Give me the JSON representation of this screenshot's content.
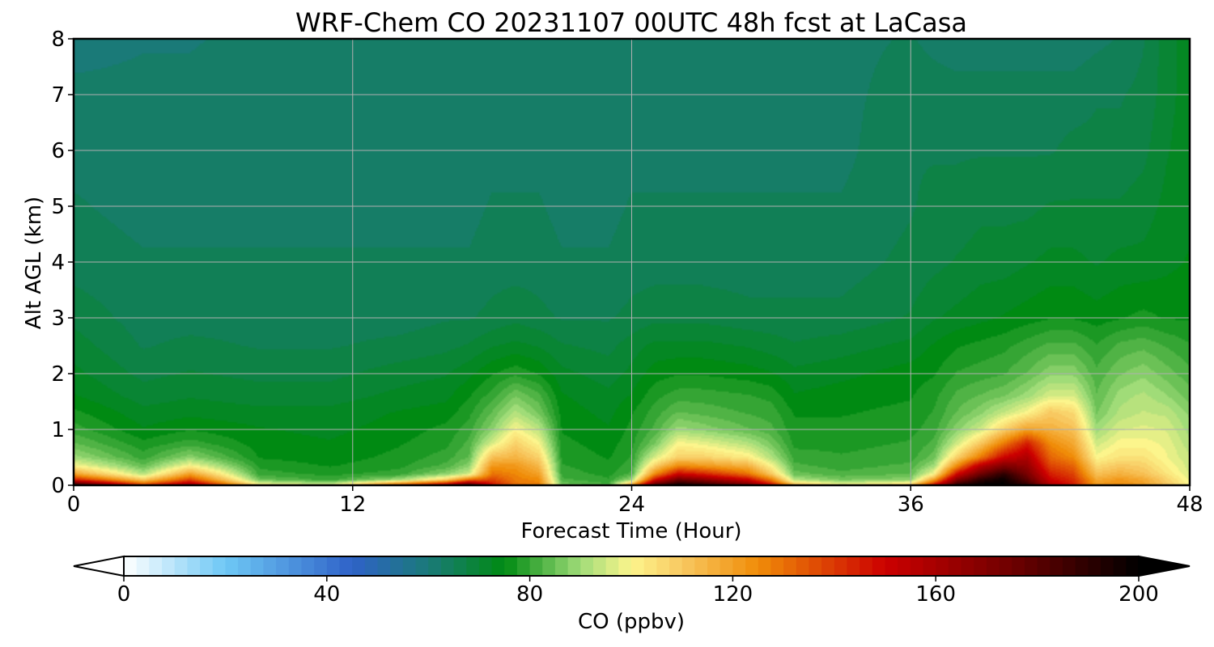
{
  "chart_data": {
    "type": "heatmap",
    "title": "WRF-Chem CO  20231107 00UTC 48h fcst at LaCasa",
    "xlabel": "Forecast Time (Hour)",
    "ylabel": "Alt AGL (km)",
    "xlim": [
      0,
      48
    ],
    "ylim": [
      0,
      8
    ],
    "x_ticks": [
      "0",
      "12",
      "24",
      "36",
      "48"
    ],
    "y_ticks": [
      "0",
      "1",
      "2",
      "3",
      "4",
      "5",
      "6",
      "7",
      "8"
    ],
    "grid": true,
    "colorbar": {
      "label": "CO  (ppbv)",
      "min": 0,
      "max": 200,
      "ticks": [
        "0",
        "40",
        "80",
        "120",
        "160",
        "200"
      ],
      "extend": "both",
      "stops": [
        {
          "value": 0,
          "color": "#ffffff"
        },
        {
          "value": 20,
          "color": "#6ec8f5"
        },
        {
          "value": 45,
          "color": "#2f62c8"
        },
        {
          "value": 60,
          "color": "#1a7a78"
        },
        {
          "value": 75,
          "color": "#008a12"
        },
        {
          "value": 90,
          "color": "#a0dc78"
        },
        {
          "value": 100,
          "color": "#fcf58c"
        },
        {
          "value": 110,
          "color": "#f8c860"
        },
        {
          "value": 125,
          "color": "#f08c08"
        },
        {
          "value": 150,
          "color": "#cc0000"
        },
        {
          "value": 175,
          "color": "#6e0000"
        },
        {
          "value": 200,
          "color": "#000000"
        }
      ]
    },
    "heights_km": [
      0,
      0.1,
      0.2,
      0.35,
      0.5,
      0.75,
      1.0,
      1.3,
      1.6,
      2.0,
      2.5,
      3.0,
      4.0,
      5.0,
      6.0,
      7.0,
      8.0
    ],
    "times_h": [
      0,
      3,
      5,
      8,
      11,
      14,
      16,
      17,
      18,
      19,
      20,
      21,
      23,
      24,
      25,
      26,
      27,
      29,
      30,
      31,
      33,
      36,
      37,
      38,
      39,
      40,
      41,
      42,
      43,
      44,
      45,
      46,
      47,
      48
    ],
    "co_ppbv": [
      [
        195,
        145,
        120,
        100,
        90,
        84,
        80,
        77,
        74,
        72,
        70,
        68,
        65,
        64,
        63,
        62,
        60
      ],
      [
        140,
        110,
        92,
        84,
        80,
        77,
        74,
        72,
        70,
        68,
        66,
        65,
        64,
        63,
        63,
        62,
        61
      ],
      [
        165,
        138,
        120,
        100,
        88,
        80,
        76,
        73,
        71,
        69,
        67,
        65,
        64,
        63,
        63,
        62,
        61
      ],
      [
        102,
        85,
        80,
        78,
        76,
        75,
        74,
        72,
        70,
        68,
        66,
        65,
        64,
        63,
        63,
        63,
        62
      ],
      [
        96,
        80,
        78,
        76,
        75,
        74,
        73,
        72,
        70,
        68,
        66,
        65,
        64,
        63,
        63,
        63,
        63
      ],
      [
        135,
        90,
        80,
        78,
        77,
        76,
        75,
        74,
        72,
        70,
        67,
        65,
        64,
        63,
        63,
        63,
        63
      ],
      [
        160,
        108,
        88,
        82,
        80,
        78,
        77,
        75,
        73,
        71,
        68,
        66,
        64,
        63,
        63,
        63,
        63
      ],
      [
        185,
        130,
        95,
        88,
        84,
        82,
        80,
        78,
        76,
        73,
        69,
        66,
        64,
        63,
        63,
        63,
        63
      ],
      [
        148,
        138,
        130,
        122,
        112,
        96,
        88,
        84,
        80,
        76,
        71,
        67,
        65,
        64,
        63,
        63,
        63
      ],
      [
        130,
        128,
        126,
        122,
        115,
        108,
        100,
        92,
        86,
        78,
        72,
        68,
        65,
        64,
        63,
        63,
        63
      ],
      [
        128,
        125,
        120,
        114,
        108,
        100,
        93,
        86,
        82,
        76,
        71,
        67,
        65,
        64,
        63,
        63,
        63
      ],
      [
        86,
        82,
        80,
        79,
        78,
        77,
        76,
        75,
        74,
        72,
        69,
        66,
        64,
        63,
        63,
        63,
        63
      ],
      [
        82,
        79,
        78,
        77,
        76,
        75,
        74,
        73,
        72,
        70,
        68,
        66,
        64,
        63,
        63,
        63,
        63
      ],
      [
        120,
        90,
        82,
        80,
        79,
        78,
        77,
        76,
        74,
        72,
        70,
        67,
        65,
        64,
        63,
        63,
        63
      ],
      [
        182,
        148,
        125,
        108,
        96,
        86,
        82,
        80,
        78,
        75,
        72,
        68,
        65,
        64,
        63,
        63,
        63
      ],
      [
        198,
        175,
        150,
        125,
        108,
        100,
        90,
        84,
        80,
        76,
        72,
        68,
        65,
        64,
        63,
        63,
        63
      ],
      [
        192,
        168,
        145,
        122,
        108,
        98,
        88,
        83,
        80,
        76,
        72,
        68,
        65,
        64,
        63,
        63,
        63
      ],
      [
        175,
        150,
        130,
        115,
        102,
        92,
        84,
        81,
        79,
        75,
        71,
        67,
        65,
        64,
        63,
        63,
        63
      ],
      [
        150,
        128,
        110,
        100,
        92,
        86,
        82,
        80,
        78,
        74,
        70,
        67,
        65,
        64,
        63,
        63,
        63
      ],
      [
        115,
        92,
        85,
        82,
        80,
        78,
        77,
        76,
        74,
        72,
        69,
        67,
        65,
        64,
        63,
        63,
        63
      ],
      [
        100,
        86,
        82,
        80,
        79,
        78,
        77,
        76,
        75,
        73,
        70,
        67,
        65,
        64,
        63,
        63,
        63
      ],
      [
        110,
        88,
        84,
        82,
        80,
        79,
        78,
        77,
        76,
        75,
        72,
        69,
        67,
        66,
        66,
        65,
        64
      ],
      [
        150,
        120,
        100,
        90,
        85,
        82,
        80,
        79,
        78,
        76,
        74,
        71,
        68,
        67,
        66,
        65,
        63
      ],
      [
        192,
        170,
        150,
        125,
        108,
        95,
        88,
        84,
        82,
        79,
        76,
        72,
        69,
        67,
        66,
        65,
        62
      ],
      [
        200,
        190,
        175,
        155,
        128,
        110,
        95,
        88,
        84,
        80,
        77,
        73,
        70,
        68,
        66,
        65,
        62
      ],
      [
        200,
        198,
        190,
        170,
        150,
        128,
        108,
        94,
        86,
        81,
        78,
        74,
        70,
        68,
        66,
        65,
        62
      ],
      [
        190,
        180,
        172,
        165,
        158,
        145,
        120,
        100,
        90,
        84,
        80,
        75,
        71,
        68,
        66,
        65,
        62
      ],
      [
        158,
        150,
        145,
        138,
        132,
        125,
        116,
        110,
        96,
        88,
        82,
        76,
        72,
        69,
        66,
        65,
        62
      ],
      [
        145,
        142,
        138,
        132,
        125,
        118,
        112,
        106,
        96,
        88,
        82,
        76,
        72,
        69,
        67,
        65,
        62
      ],
      [
        122,
        118,
        112,
        106,
        100,
        95,
        90,
        86,
        84,
        82,
        79,
        75,
        71,
        69,
        67,
        66,
        63
      ],
      [
        125,
        122,
        116,
        110,
        104,
        100,
        96,
        92,
        90,
        86,
        82,
        76,
        72,
        69,
        67,
        66,
        64
      ],
      [
        120,
        118,
        112,
        108,
        104,
        100,
        97,
        94,
        92,
        88,
        83,
        77,
        72,
        70,
        68,
        67,
        66
      ],
      [
        110,
        108,
        104,
        101,
        99,
        98,
        96,
        93,
        89,
        85,
        81,
        76,
        73,
        72,
        71,
        70,
        70
      ],
      [
        100,
        98,
        96,
        95,
        94,
        92,
        90,
        88,
        85,
        82,
        79,
        76,
        74,
        73,
        73,
        73,
        73
      ]
    ]
  }
}
